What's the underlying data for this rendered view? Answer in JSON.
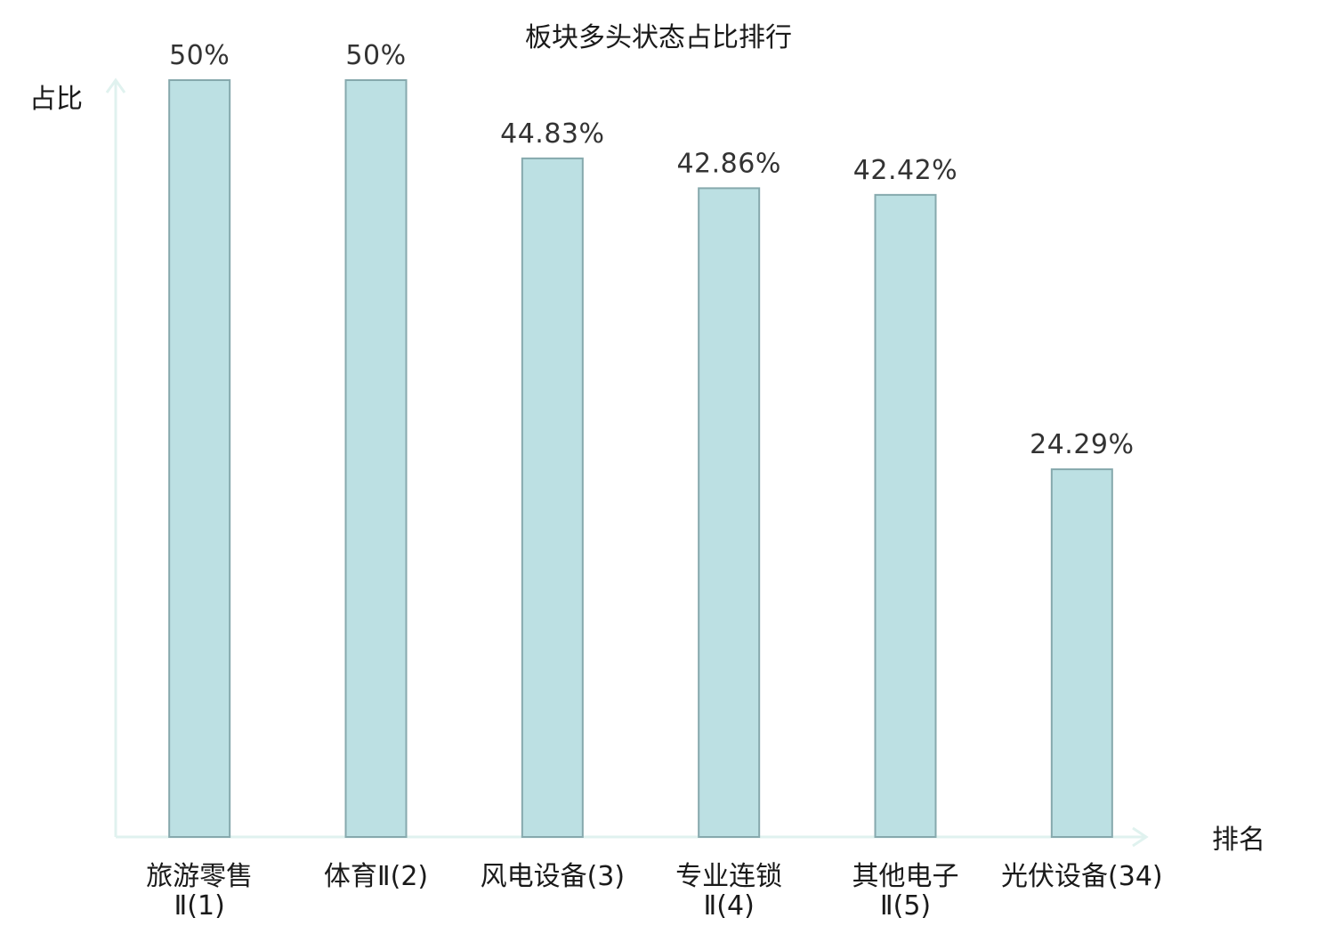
{
  "chart_data": {
    "type": "bar",
    "title": "板块多头状态占比排行",
    "xlabel": "排名",
    "ylabel": "占比",
    "ylim": [
      0,
      50
    ],
    "grid": false,
    "categories": [
      [
        "旅游零售",
        "Ⅱ(1)"
      ],
      [
        "体育Ⅱ(2)"
      ],
      [
        "风电设备(3)"
      ],
      [
        "专业连锁",
        "Ⅱ(4)"
      ],
      [
        "其他电子",
        "Ⅱ(5)"
      ],
      [
        "光伏设备(34)"
      ]
    ],
    "values": [
      50,
      50,
      44.83,
      42.86,
      42.42,
      24.29
    ],
    "value_labels": [
      "50%",
      "50%",
      "44.83%",
      "42.86%",
      "42.42%",
      "24.29%"
    ],
    "highlight_index": 5,
    "colors": {
      "bar_fill": "#bce0e3",
      "bar_stroke": "#86a9ad",
      "axis": "#e0f2ef",
      "highlight_text": "#e02020",
      "text": "#1a1a1a",
      "value_text": "#333333"
    }
  }
}
